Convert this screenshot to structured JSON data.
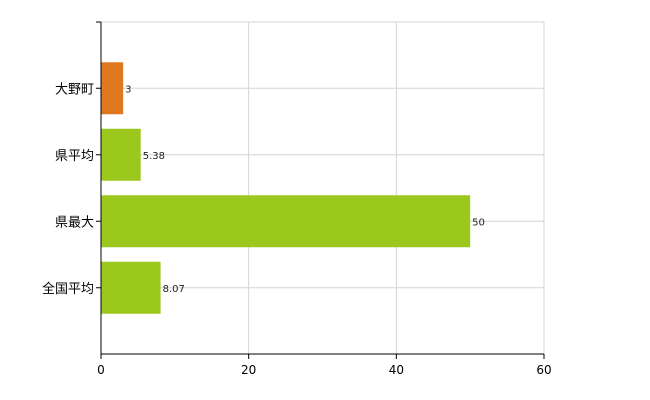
{
  "chart_data": {
    "type": "bar",
    "orientation": "horizontal",
    "categories": [
      "大野町",
      "県平均",
      "県最大",
      "全国平均"
    ],
    "values": [
      3,
      5.38,
      50,
      8.07
    ],
    "value_labels": [
      "3",
      "5.38",
      "50",
      "8.07"
    ],
    "colors": [
      "#e07820",
      "#9cc81e",
      "#9cc81e",
      "#9cc81e"
    ],
    "xlim": [
      0,
      60
    ],
    "xticks": [
      0,
      20,
      40,
      60
    ],
    "xtick_labels": [
      "0",
      "20",
      "40",
      "60"
    ],
    "grid": true,
    "title": "",
    "xlabel": "",
    "ylabel": ""
  }
}
